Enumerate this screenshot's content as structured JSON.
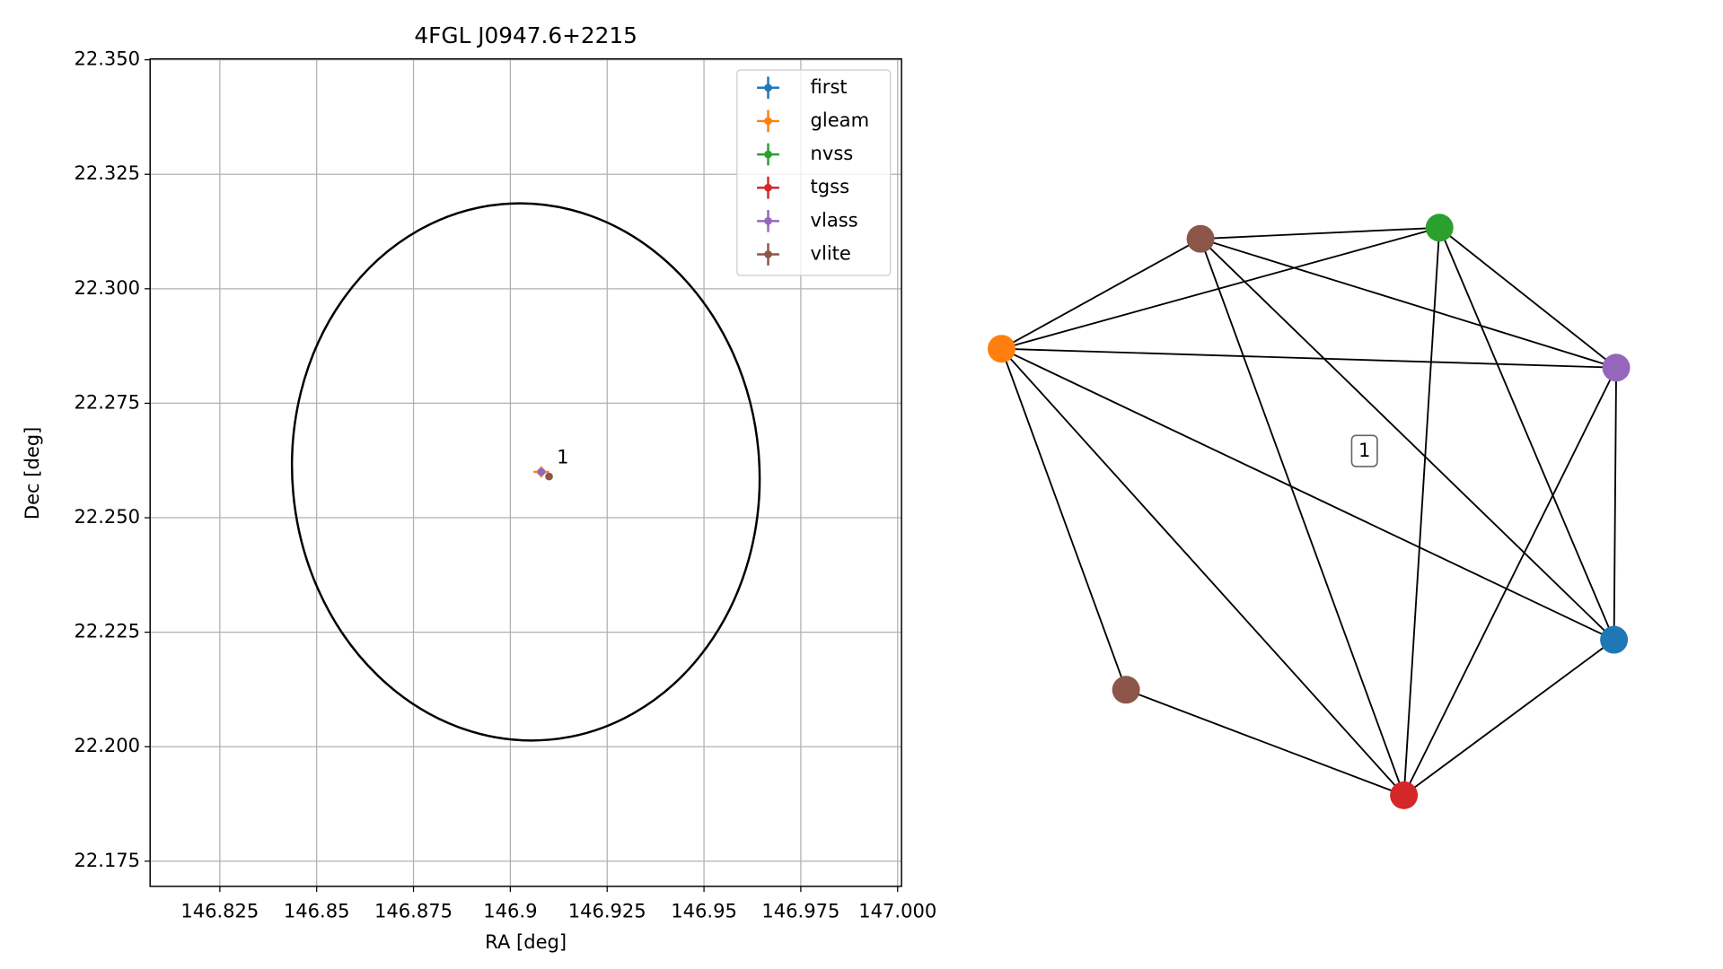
{
  "chart_data": [
    {
      "type": "scatter",
      "title": "4FGL J0947.6+2215",
      "xlabel": "RA [deg]",
      "ylabel": "Dec [deg]",
      "xlim": [
        146.807,
        147.001
      ],
      "ylim": [
        22.1695,
        22.3502
      ],
      "xticks": [
        146.825,
        146.85,
        146.875,
        146.9,
        146.925,
        146.95,
        146.975,
        {
          "value": 147,
          "label": "147.000"
        }
      ],
      "yticks": [
        22.175,
        {
          "value": 22.2,
          "label": "22.200"
        },
        22.225,
        {
          "value": 22.25,
          "label": "22.250"
        },
        22.275,
        {
          "value": 22.3,
          "label": "22.300"
        },
        22.325,
        {
          "value": 22.35,
          "label": "22.350"
        }
      ],
      "grid": true,
      "legend": "upper right",
      "series": [
        {
          "name": "first",
          "color": "#1f77b4",
          "x": [
            146.908
          ],
          "y": [
            22.26
          ],
          "xerr": [
            0.0005
          ],
          "yerr": [
            0.0005
          ]
        },
        {
          "name": "gleam",
          "color": "#ff7f0e",
          "x": [
            146.908
          ],
          "y": [
            22.26
          ],
          "xerr": [
            0.002
          ],
          "yerr": [
            0.0012
          ]
        },
        {
          "name": "nvss",
          "color": "#2ca02c",
          "x": [
            146.908
          ],
          "y": [
            22.26
          ],
          "xerr": [
            0.0005
          ],
          "yerr": [
            0.0005
          ]
        },
        {
          "name": "tgss",
          "color": "#d62728",
          "x": [
            146.908
          ],
          "y": [
            22.26
          ],
          "xerr": [
            0.0005
          ],
          "yerr": [
            0.0005
          ]
        },
        {
          "name": "vlass",
          "color": "#9467bd",
          "x": [
            146.908
          ],
          "y": [
            22.26
          ],
          "xerr": [
            0.0005
          ],
          "yerr": [
            0.0005
          ]
        },
        {
          "name": "vlite",
          "color": "#8c564b",
          "x": [
            146.91
          ],
          "y": [
            22.259
          ],
          "xerr": [
            0.0005
          ],
          "yerr": [
            0.0005
          ]
        }
      ],
      "ellipse": {
        "center_x": 146.904,
        "center_y": 22.26,
        "half_width": 0.0603,
        "half_height": 0.0587,
        "angle": 5,
        "color": "#000000"
      },
      "annotations": [
        {
          "text": "1",
          "x": 146.912,
          "y": 22.263
        }
      ]
    },
    {
      "type": "network",
      "nodes": [
        {
          "color": "#8c564b"
        },
        {
          "color": "#2ca02c"
        },
        {
          "color": "#ff7f0e"
        },
        {
          "color": "#9467bd"
        },
        {
          "color": "#1f77b4"
        },
        {
          "color": "#8c564b"
        },
        {
          "color": "#d62728"
        }
      ],
      "edges": [
        [
          0,
          1
        ],
        [
          0,
          2
        ],
        [
          0,
          3
        ],
        [
          0,
          6
        ],
        [
          0,
          4
        ],
        [
          1,
          2
        ],
        [
          1,
          6
        ],
        [
          1,
          3
        ],
        [
          1,
          4
        ],
        [
          2,
          3
        ],
        [
          2,
          4
        ],
        [
          2,
          6
        ],
        [
          2,
          5
        ],
        [
          3,
          4
        ],
        [
          3,
          6
        ],
        [
          4,
          6
        ],
        [
          5,
          6
        ]
      ],
      "label": "1"
    }
  ]
}
